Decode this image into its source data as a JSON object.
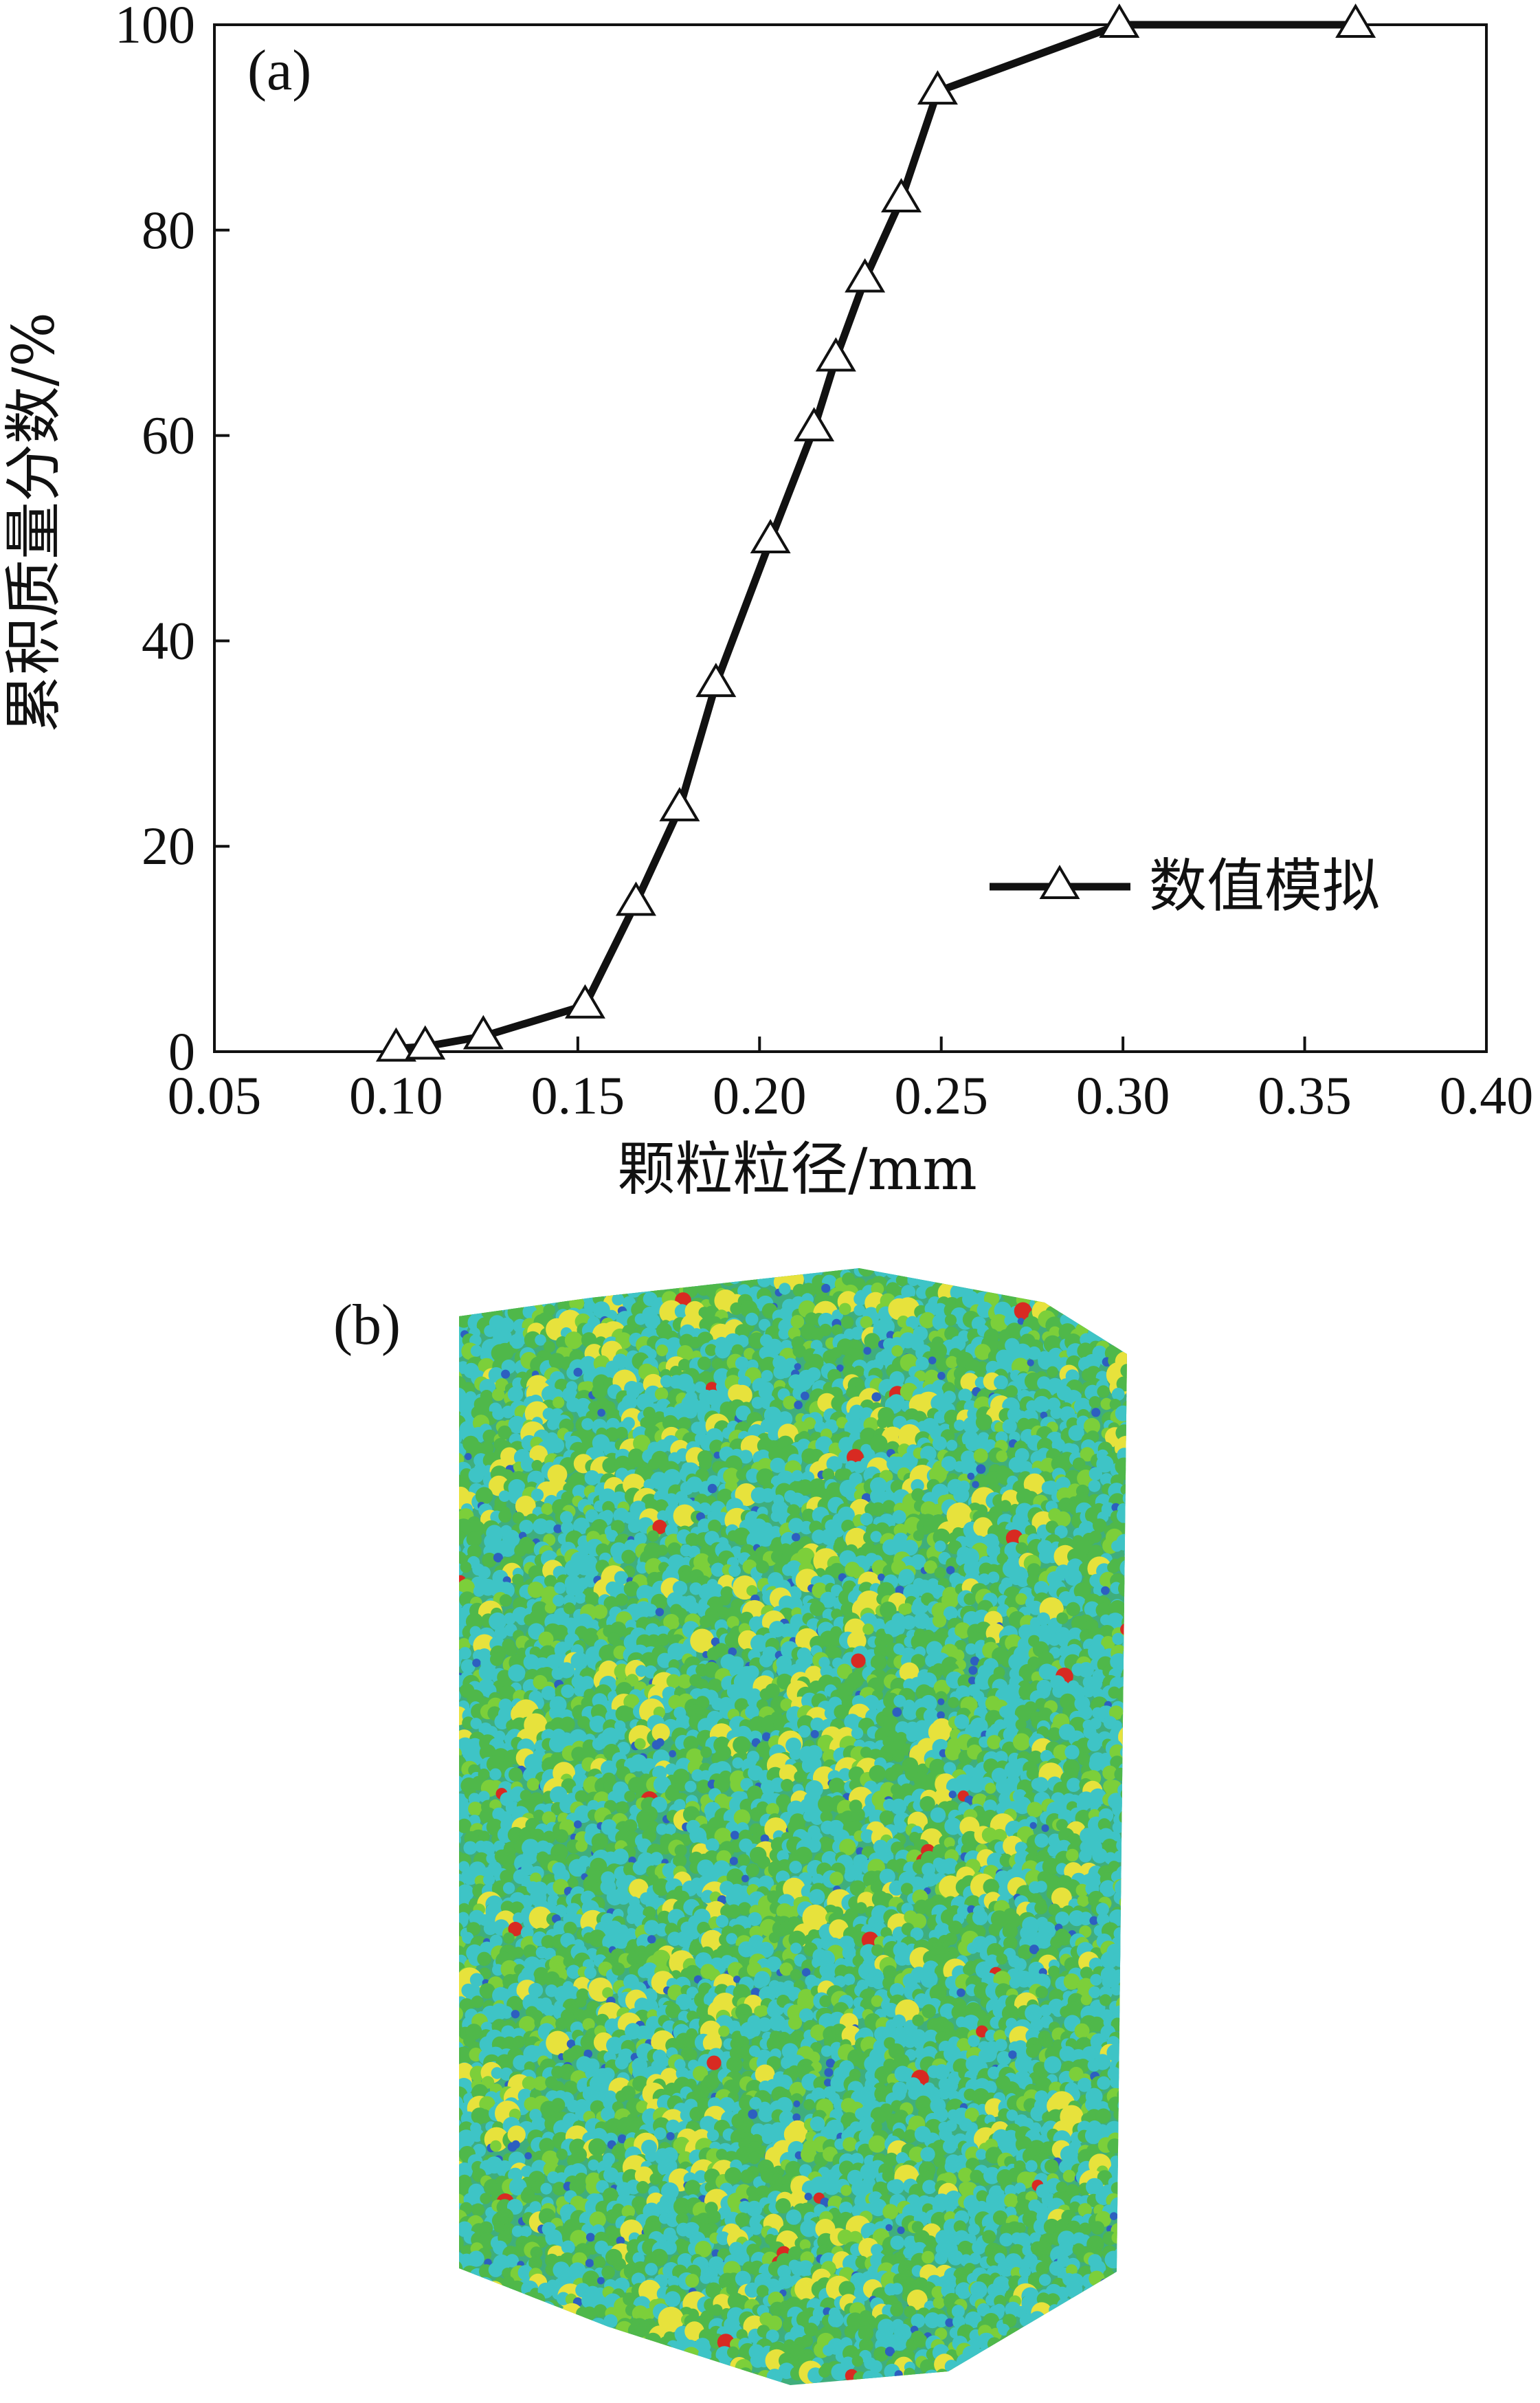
{
  "chart_data": {
    "type": "line",
    "panel_label": "(a)",
    "xlabel": "颗粒粒径/mm",
    "ylabel": "累积质量分数/%",
    "xlim": [
      0.05,
      0.4
    ],
    "ylim": [
      0,
      100
    ],
    "xticks": [
      "0.05",
      "0.10",
      "0.15",
      "0.20",
      "0.25",
      "0.30",
      "0.35",
      "0.40"
    ],
    "yticks": [
      "0",
      "20",
      "40",
      "60",
      "80",
      "100"
    ],
    "grid": false,
    "legend_position": "bottom-right",
    "series": [
      {
        "name": "数值模拟",
        "marker": "open-triangle",
        "color": "#111111",
        "x": [
          0.1,
          0.108,
          0.124,
          0.152,
          0.166,
          0.178,
          0.188,
          0.203,
          0.215,
          0.221,
          0.229,
          0.239,
          0.249,
          0.299,
          0.364
        ],
        "y": [
          0.3,
          0.5,
          1.5,
          4.5,
          14.5,
          23.7,
          35.8,
          49.8,
          60.7,
          67.5,
          75.2,
          83.0,
          93.5,
          100,
          100
        ]
      }
    ]
  },
  "packing_figure": {
    "panel_label": "(b)",
    "particle_colors": [
      "#3ec4c6",
      "#4fb84a",
      "#7ccf3a",
      "#e7e23c",
      "#2d5fc0",
      "#d82a22"
    ]
  }
}
